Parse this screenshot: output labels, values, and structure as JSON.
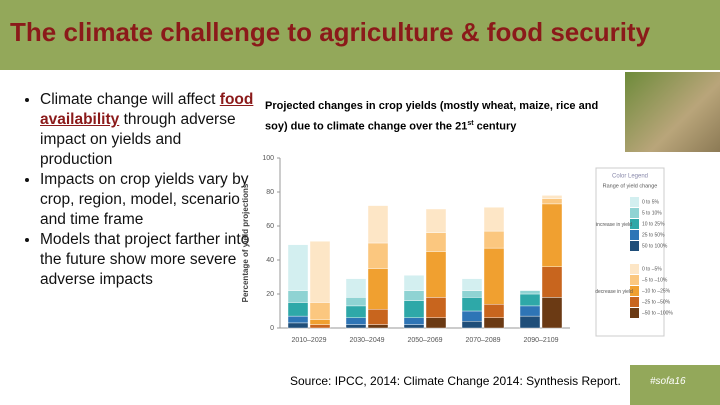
{
  "slide": {
    "title": "The climate challenge to agriculture & food security",
    "bullets": [
      {
        "before": "Climate change will affect ",
        "emphasis": "food availability",
        "after": " through adverse impact on yields and production"
      },
      {
        "text": "Impacts on crop yields vary by crop, region, model, scenario and time frame"
      },
      {
        "text": "Models that project farther into the future show more severe adverse impacts"
      }
    ],
    "source": "Source: IPCC, 2014: Climate Change 2014: Synthesis Report.",
    "hashtag": "#sofa16"
  },
  "chart_data": {
    "type": "grouped-stacked-bar",
    "title": "Projected changes in crop yields (mostly wheat, maize, rice and soy) due to climate change over the 21",
    "title_sup": "st",
    "title_end": " century",
    "y_label": "Percentage of yield projections",
    "categories": [
      "2010–2029",
      "2030–2049",
      "2050–2069",
      "2070–2089",
      "2090–2109"
    ],
    "ylim": [
      0,
      100
    ],
    "yticks": [
      0,
      20,
      40,
      60,
      80,
      100
    ],
    "legend_title": "Color Legend",
    "legend_subtitle": "Range of yield change",
    "series_groups": [
      {
        "name": "increase in yield",
        "series": [
          {
            "name": "50 to 100%",
            "color": "#1f4e79",
            "values": [
              3,
              2,
              2,
              4,
              7
            ]
          },
          {
            "name": "25 to 50%",
            "color": "#2e75b6",
            "values": [
              4,
              4,
              4,
              6,
              6
            ]
          },
          {
            "name": "10 to 25%",
            "color": "#2ea8a8",
            "values": [
              8,
              7,
              10,
              8,
              7
            ]
          },
          {
            "name": "5 to 10%",
            "color": "#8fd3d3",
            "values": [
              7,
              5,
              6,
              4,
              2
            ]
          },
          {
            "name": "0 to 5%",
            "color": "#d3eff0",
            "values": [
              27,
              11,
              9,
              7,
              0
            ]
          }
        ]
      },
      {
        "name": "decrease in yield",
        "series": [
          {
            "name": "–50 to –100%",
            "color": "#6b3a14",
            "values": [
              0,
              2,
              6,
              6,
              18
            ]
          },
          {
            "name": "–25 to –50%",
            "color": "#c8651e",
            "values": [
              2,
              9,
              12,
              8,
              18
            ]
          },
          {
            "name": "–10 to –25%",
            "color": "#f0a030",
            "values": [
              3,
              24,
              27,
              33,
              37
            ]
          },
          {
            "name": "–5 to –10%",
            "color": "#fbc77f",
            "values": [
              10,
              15,
              11,
              10,
              3
            ]
          },
          {
            "name": "0 to –5%",
            "color": "#fde6c6",
            "values": [
              36,
              22,
              14,
              14,
              2
            ]
          }
        ]
      }
    ]
  }
}
